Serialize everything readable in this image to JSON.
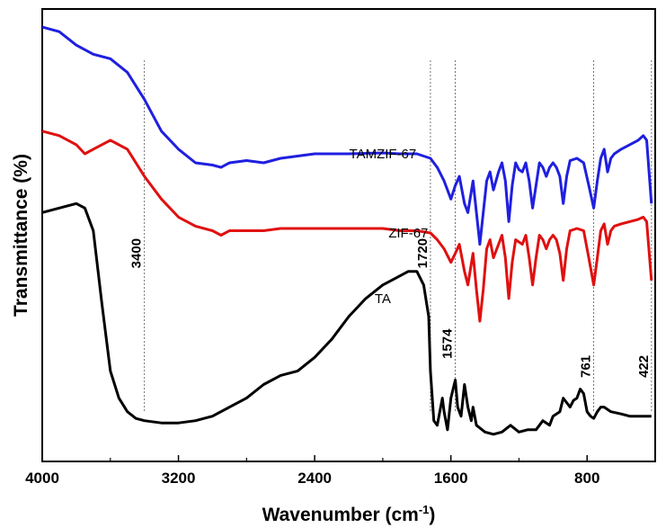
{
  "chart_data": {
    "type": "line",
    "xlabel": "Wavenumber (cm",
    "xlabel_sup": "-1",
    "xlabel_close": ")",
    "ylabel": "Transmittance (%)",
    "xlim": [
      4000,
      400
    ],
    "x_reversed": true,
    "x_ticks": [
      4000,
      3200,
      2400,
      1600,
      800
    ],
    "y_ticks_shown": false,
    "grid": false,
    "legend": "none",
    "series": [
      {
        "name": "TAMZIF-67",
        "color": "#1f1fe0",
        "points": [
          [
            4000,
            96
          ],
          [
            3900,
            95
          ],
          [
            3800,
            92
          ],
          [
            3700,
            90
          ],
          [
            3600,
            89
          ],
          [
            3500,
            86
          ],
          [
            3400,
            80
          ],
          [
            3300,
            73
          ],
          [
            3200,
            69
          ],
          [
            3100,
            66
          ],
          [
            3000,
            65.5
          ],
          [
            2950,
            65
          ],
          [
            2900,
            66
          ],
          [
            2800,
            66.5
          ],
          [
            2700,
            66
          ],
          [
            2600,
            67
          ],
          [
            2500,
            67.5
          ],
          [
            2400,
            68
          ],
          [
            2200,
            68
          ],
          [
            2000,
            68.2
          ],
          [
            1900,
            68
          ],
          [
            1800,
            68
          ],
          [
            1720,
            67
          ],
          [
            1680,
            65
          ],
          [
            1640,
            62
          ],
          [
            1600,
            58
          ],
          [
            1574,
            61
          ],
          [
            1550,
            63
          ],
          [
            1520,
            57
          ],
          [
            1500,
            55
          ],
          [
            1470,
            62
          ],
          [
            1450,
            55
          ],
          [
            1430,
            48
          ],
          [
            1410,
            55
          ],
          [
            1390,
            62
          ],
          [
            1370,
            64
          ],
          [
            1350,
            60
          ],
          [
            1320,
            64
          ],
          [
            1300,
            66
          ],
          [
            1280,
            62
          ],
          [
            1260,
            53
          ],
          [
            1240,
            61
          ],
          [
            1220,
            66
          ],
          [
            1200,
            64.5
          ],
          [
            1180,
            64
          ],
          [
            1160,
            66
          ],
          [
            1140,
            62
          ],
          [
            1120,
            56
          ],
          [
            1100,
            61
          ],
          [
            1080,
            66
          ],
          [
            1060,
            65
          ],
          [
            1040,
            63
          ],
          [
            1020,
            65
          ],
          [
            1000,
            66
          ],
          [
            980,
            65
          ],
          [
            960,
            63
          ],
          [
            940,
            57
          ],
          [
            920,
            63
          ],
          [
            900,
            66.5
          ],
          [
            860,
            67
          ],
          [
            820,
            66
          ],
          [
            790,
            61
          ],
          [
            761,
            56
          ],
          [
            740,
            62
          ],
          [
            720,
            67
          ],
          [
            700,
            69
          ],
          [
            680,
            64
          ],
          [
            660,
            67
          ],
          [
            640,
            68
          ],
          [
            600,
            69
          ],
          [
            550,
            70
          ],
          [
            500,
            71
          ],
          [
            470,
            72
          ],
          [
            450,
            71
          ],
          [
            422,
            57
          ]
        ]
      },
      {
        "name": "ZIF-67",
        "color": "#e01010",
        "points": [
          [
            4000,
            73
          ],
          [
            3900,
            72
          ],
          [
            3800,
            70
          ],
          [
            3750,
            68
          ],
          [
            3700,
            69
          ],
          [
            3600,
            71
          ],
          [
            3500,
            69
          ],
          [
            3400,
            63
          ],
          [
            3300,
            58
          ],
          [
            3200,
            54
          ],
          [
            3100,
            52
          ],
          [
            3000,
            51
          ],
          [
            2950,
            50
          ],
          [
            2900,
            51
          ],
          [
            2800,
            51
          ],
          [
            2700,
            51
          ],
          [
            2600,
            51.5
          ],
          [
            2500,
            51.5
          ],
          [
            2400,
            51.5
          ],
          [
            2200,
            51.5
          ],
          [
            2000,
            51.5
          ],
          [
            1900,
            51
          ],
          [
            1800,
            51
          ],
          [
            1720,
            50.5
          ],
          [
            1680,
            49
          ],
          [
            1640,
            47
          ],
          [
            1600,
            44
          ],
          [
            1574,
            46
          ],
          [
            1550,
            48
          ],
          [
            1520,
            42
          ],
          [
            1500,
            39
          ],
          [
            1470,
            46
          ],
          [
            1450,
            38
          ],
          [
            1430,
            31
          ],
          [
            1410,
            38
          ],
          [
            1390,
            47
          ],
          [
            1370,
            49
          ],
          [
            1350,
            45
          ],
          [
            1320,
            48
          ],
          [
            1300,
            50
          ],
          [
            1280,
            45
          ],
          [
            1260,
            36
          ],
          [
            1240,
            44
          ],
          [
            1220,
            49
          ],
          [
            1200,
            48.5
          ],
          [
            1180,
            48
          ],
          [
            1160,
            50
          ],
          [
            1140,
            45
          ],
          [
            1120,
            39
          ],
          [
            1100,
            45
          ],
          [
            1080,
            50
          ],
          [
            1060,
            49
          ],
          [
            1040,
            47
          ],
          [
            1020,
            49
          ],
          [
            1000,
            50
          ],
          [
            980,
            49
          ],
          [
            960,
            46
          ],
          [
            940,
            40
          ],
          [
            920,
            47
          ],
          [
            900,
            51
          ],
          [
            860,
            51.5
          ],
          [
            820,
            51
          ],
          [
            790,
            45
          ],
          [
            761,
            39
          ],
          [
            740,
            45
          ],
          [
            720,
            51
          ],
          [
            700,
            52.5
          ],
          [
            680,
            48
          ],
          [
            660,
            51
          ],
          [
            640,
            52
          ],
          [
            600,
            52.5
          ],
          [
            550,
            53
          ],
          [
            500,
            53.5
          ],
          [
            470,
            54
          ],
          [
            450,
            53
          ],
          [
            422,
            40
          ]
        ]
      },
      {
        "name": "TA",
        "color": "#000000",
        "points": [
          [
            4000,
            55
          ],
          [
            3900,
            56
          ],
          [
            3800,
            57
          ],
          [
            3750,
            56
          ],
          [
            3700,
            51
          ],
          [
            3650,
            35
          ],
          [
            3600,
            20
          ],
          [
            3550,
            14
          ],
          [
            3500,
            11
          ],
          [
            3450,
            9.5
          ],
          [
            3400,
            9
          ],
          [
            3300,
            8.5
          ],
          [
            3200,
            8.5
          ],
          [
            3100,
            9
          ],
          [
            3000,
            10
          ],
          [
            2900,
            12
          ],
          [
            2800,
            14
          ],
          [
            2700,
            17
          ],
          [
            2600,
            19
          ],
          [
            2500,
            20
          ],
          [
            2400,
            23
          ],
          [
            2300,
            27
          ],
          [
            2200,
            32
          ],
          [
            2100,
            36
          ],
          [
            2000,
            39
          ],
          [
            1950,
            40
          ],
          [
            1900,
            41
          ],
          [
            1850,
            42
          ],
          [
            1800,
            42
          ],
          [
            1760,
            39
          ],
          [
            1730,
            32
          ],
          [
            1720,
            20
          ],
          [
            1700,
            9
          ],
          [
            1680,
            8
          ],
          [
            1660,
            12
          ],
          [
            1650,
            14
          ],
          [
            1640,
            11
          ],
          [
            1620,
            7
          ],
          [
            1600,
            14
          ],
          [
            1574,
            18
          ],
          [
            1560,
            12
          ],
          [
            1540,
            10
          ],
          [
            1520,
            17
          ],
          [
            1500,
            12
          ],
          [
            1480,
            9
          ],
          [
            1470,
            12
          ],
          [
            1450,
            8
          ],
          [
            1400,
            6.5
          ],
          [
            1350,
            6
          ],
          [
            1300,
            6.5
          ],
          [
            1250,
            8
          ],
          [
            1200,
            6.5
          ],
          [
            1150,
            7
          ],
          [
            1100,
            7
          ],
          [
            1060,
            9
          ],
          [
            1020,
            8
          ],
          [
            1000,
            10
          ],
          [
            960,
            11
          ],
          [
            940,
            14
          ],
          [
            920,
            13
          ],
          [
            900,
            12
          ],
          [
            880,
            13.5
          ],
          [
            860,
            14
          ],
          [
            840,
            16
          ],
          [
            820,
            15
          ],
          [
            800,
            11
          ],
          [
            780,
            10
          ],
          [
            761,
            9.5
          ],
          [
            740,
            11
          ],
          [
            720,
            12
          ],
          [
            700,
            12
          ],
          [
            660,
            11
          ],
          [
            600,
            10.5
          ],
          [
            550,
            10
          ],
          [
            500,
            10
          ],
          [
            450,
            10
          ],
          [
            422,
            10
          ]
        ]
      }
    ],
    "series_labels": [
      {
        "text": "TAMZIF-67",
        "x": 2000,
        "y": 67
      },
      {
        "text": "ZIF-67",
        "x": 1850,
        "y": 49.5
      },
      {
        "text": "TA",
        "x": 2000,
        "y": 35
      }
    ],
    "reference_lines": [
      {
        "x": 3400,
        "label": "3400",
        "label_y": 46
      },
      {
        "x": 1720,
        "label": "1720",
        "label_y": 46
      },
      {
        "x": 1574,
        "label": "1574",
        "label_y": 26
      },
      {
        "x": 761,
        "label": "761",
        "label_y": 21
      },
      {
        "x": 422,
        "label": "422",
        "label_y": 21
      }
    ],
    "ylim": [
      0,
      100
    ]
  }
}
